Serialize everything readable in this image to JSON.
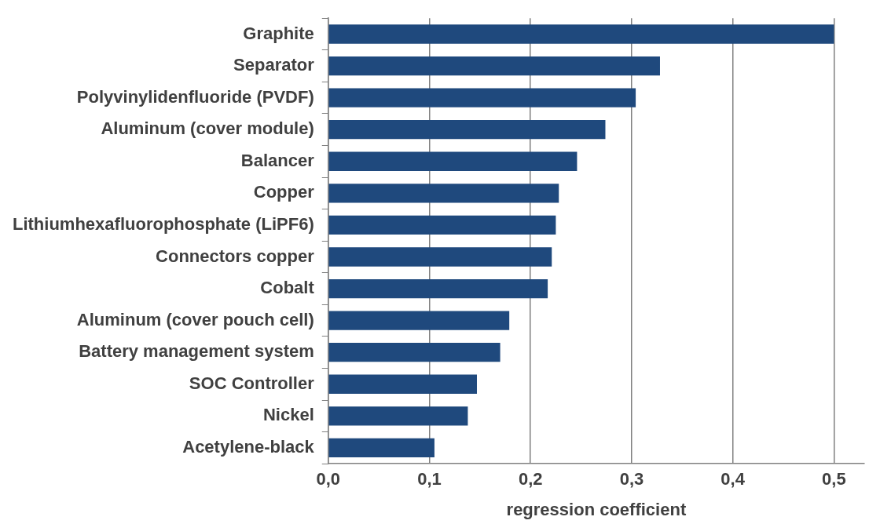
{
  "chart_data": {
    "type": "bar",
    "orientation": "horizontal",
    "xlabel": "regression coefficient",
    "categories": [
      "Graphite",
      "Separator",
      "Polyvinylidenfluoride (PVDF)",
      "Aluminum (cover module)",
      "Balancer",
      "Copper",
      "Lithiumhexafluorophosphate (LiPF6)",
      "Connectors copper",
      "Cobalt",
      "Aluminum (cover pouch cell)",
      "Battery management system",
      "SOC Controller",
      "Nickel",
      "Acetylene-black"
    ],
    "values": [
      0.5,
      0.328,
      0.304,
      0.274,
      0.246,
      0.228,
      0.225,
      0.221,
      0.217,
      0.179,
      0.17,
      0.147,
      0.138,
      0.105
    ],
    "color": "#1f497d",
    "xlim": [
      0,
      0.53
    ],
    "xticks": [
      {
        "value": 0,
        "label": "0,0"
      },
      {
        "value": 0.1,
        "label": "0,1"
      },
      {
        "value": 0.2,
        "label": "0,2"
      },
      {
        "value": 0.3,
        "label": "0,3"
      },
      {
        "value": 0.4,
        "label": "0,4"
      },
      {
        "value": 0.5,
        "label": "0,5"
      }
    ],
    "grid": "x",
    "legend": false
  }
}
